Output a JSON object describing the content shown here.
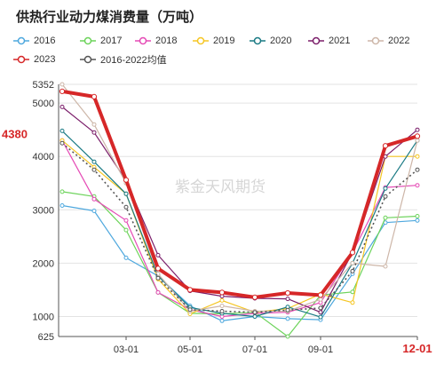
{
  "chart_data": {
    "type": "line",
    "title": "供热行业动力煤消费量（万吨）",
    "watermark": "紫金天风期货",
    "highlight_label": "4380",
    "x_axis": {
      "ticks": [
        "03-01",
        "05-01",
        "07-01",
        "09-01",
        "12-01"
      ],
      "last_tick_highlighted": true
    },
    "y_axis": {
      "ticks": [
        625,
        1000,
        2000,
        3000,
        4000,
        5000,
        5352
      ],
      "ylim": [
        625,
        5352
      ]
    },
    "grid": true,
    "legend_position": "top",
    "x": [
      "01",
      "02",
      "03",
      "04",
      "05",
      "06",
      "07",
      "08",
      "09",
      "10",
      "11",
      "12"
    ],
    "series": [
      {
        "name": "2016",
        "color": "#4ea8de",
        "dashed": false,
        "values": [
          3080,
          2980,
          2100,
          1760,
          1200,
          920,
          1000,
          960,
          940,
          1800,
          2760,
          2800
        ]
      },
      {
        "name": "2017",
        "color": "#6cd35a",
        "dashed": false,
        "values": [
          3340,
          3250,
          2620,
          1450,
          1060,
          1050,
          1080,
          625,
          1400,
          1460,
          2850,
          2880
        ]
      },
      {
        "name": "2018",
        "color": "#e54ab5",
        "dashed": false,
        "values": [
          4300,
          3200,
          2800,
          1450,
          1130,
          1000,
          1060,
          1080,
          1260,
          2200,
          3420,
          3460
        ]
      },
      {
        "name": "2019",
        "color": "#f5c623",
        "dashed": false,
        "values": [
          4300,
          3800,
          3300,
          1700,
          1050,
          1300,
          1080,
          1150,
          1420,
          1260,
          4000,
          4000
        ]
      },
      {
        "name": "2020",
        "color": "#1a7a84",
        "dashed": false,
        "values": [
          4480,
          3900,
          3300,
          1760,
          1170,
          1060,
          1000,
          1180,
          990,
          2000,
          3400,
          4300
        ]
      },
      {
        "name": "2021",
        "color": "#7b1e6a",
        "dashed": false,
        "values": [
          4930,
          4450,
          3550,
          2150,
          1480,
          1380,
          1340,
          1330,
          1080,
          2200,
          4000,
          4500
        ]
      },
      {
        "name": "2022",
        "color": "#cdb6a8",
        "dashed": false,
        "values": [
          5352,
          4600,
          3500,
          1800,
          1100,
          1200,
          1100,
          1100,
          1320,
          2000,
          1940,
          4300
        ]
      },
      {
        "name": "2023",
        "color": "#d62728",
        "dashed": false,
        "values": [
          5220,
          5120,
          3560,
          1900,
          1500,
          1450,
          1360,
          1440,
          1400,
          2200,
          4200,
          4380
        ]
      },
      {
        "name": "2016-2022均值",
        "color": "#555555",
        "dashed": true,
        "values": [
          4250,
          3750,
          3050,
          1720,
          1130,
          1100,
          1080,
          1120,
          1160,
          1850,
          3250,
          3750
        ]
      }
    ]
  }
}
